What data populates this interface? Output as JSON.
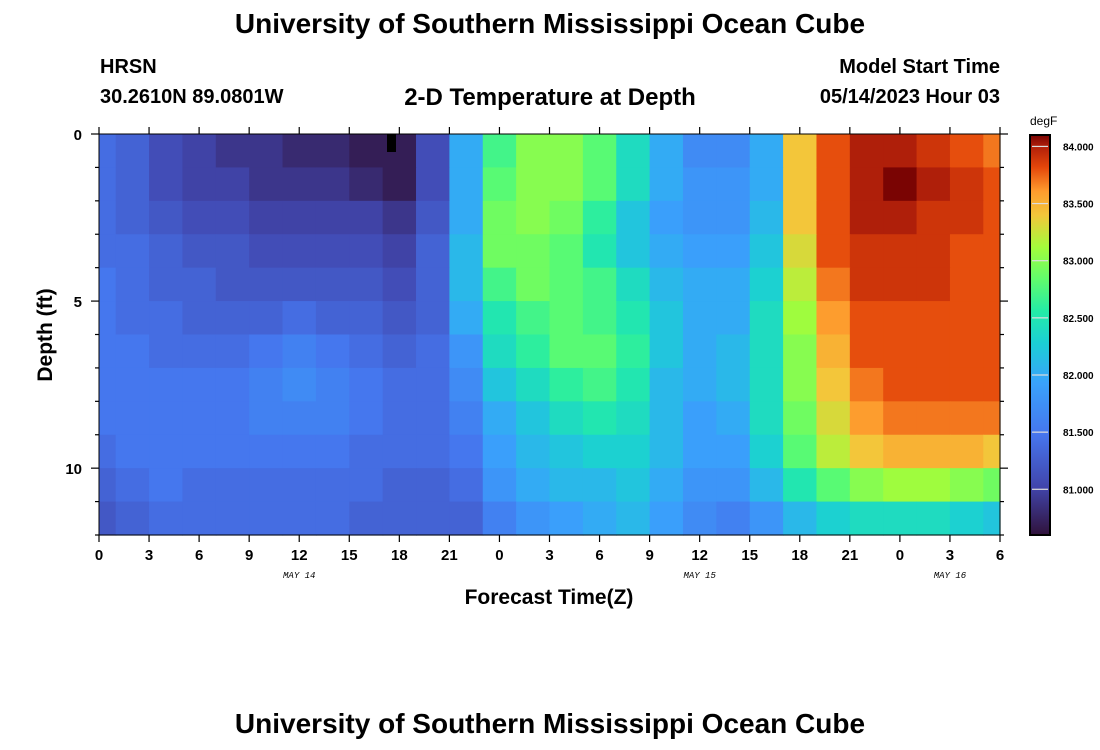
{
  "header": {
    "title": "University of Southern Mississippi Ocean Cube",
    "station": "HRSN",
    "coords": "30.2610N  89.0801W",
    "subtitle": "2-D Temperature at Depth",
    "model_start_label": "Model Start Time",
    "model_start_value": "05/14/2023 Hour 03"
  },
  "footer": {
    "title": "University of Southern Mississippi Ocean Cube"
  },
  "chart_data": {
    "type": "heatmap",
    "xlabel": "Forecast Time(Z)",
    "ylabel": "Depth (ft)",
    "x_start_hour": 0,
    "x_end_hour": 54,
    "x_ticks": [
      {
        "hour": 0,
        "label": "0"
      },
      {
        "hour": 3,
        "label": "3"
      },
      {
        "hour": 6,
        "label": "6"
      },
      {
        "hour": 9,
        "label": "9"
      },
      {
        "hour": 12,
        "label": "12"
      },
      {
        "hour": 15,
        "label": "15"
      },
      {
        "hour": 18,
        "label": "18"
      },
      {
        "hour": 21,
        "label": "21"
      },
      {
        "hour": 24,
        "label": "0"
      },
      {
        "hour": 27,
        "label": "3"
      },
      {
        "hour": 30,
        "label": "6"
      },
      {
        "hour": 33,
        "label": "9"
      },
      {
        "hour": 36,
        "label": "12"
      },
      {
        "hour": 39,
        "label": "15"
      },
      {
        "hour": 42,
        "label": "18"
      },
      {
        "hour": 45,
        "label": "21"
      },
      {
        "hour": 48,
        "label": "0"
      },
      {
        "hour": 51,
        "label": "3"
      },
      {
        "hour": 54,
        "label": "6"
      }
    ],
    "date_labels": [
      {
        "hour": 12,
        "label": "MAY 14"
      },
      {
        "hour": 36,
        "label": "MAY 15"
      },
      {
        "hour": 51,
        "label": "MAY 16"
      }
    ],
    "y_range": [
      0,
      12
    ],
    "y_ticks": [
      0,
      5,
      10
    ],
    "colorbar": {
      "unit": "degF",
      "range": [
        80.6,
        84.1
      ],
      "ticks": [
        "81.000",
        "81.500",
        "82.000",
        "82.500",
        "83.000",
        "83.500",
        "84.000"
      ],
      "tick_values": [
        81.0,
        81.5,
        82.0,
        82.5,
        83.0,
        83.5,
        84.0
      ]
    },
    "depth_levels_ft": [
      0.5,
      1.5,
      2.5,
      3.5,
      4.5,
      5.5,
      6.5,
      7.5,
      8.5,
      9.5,
      10.5,
      11.5
    ],
    "time_hours": [
      0,
      2,
      4,
      6,
      8,
      10,
      12,
      14,
      16,
      18,
      20,
      22,
      24,
      26,
      28,
      30,
      32,
      34,
      36,
      38,
      40,
      42,
      44,
      46,
      48,
      50,
      52,
      54
    ],
    "values_degF": [
      [
        81.4,
        81.3,
        81.1,
        81.0,
        80.9,
        80.9,
        80.8,
        80.8,
        80.7,
        80.7,
        81.1,
        82.0,
        82.7,
        83.0,
        83.0,
        82.8,
        82.4,
        82.0,
        81.7,
        81.7,
        82.0,
        83.4,
        83.8,
        84.0,
        84.0,
        83.9,
        83.8,
        83.7
      ],
      [
        81.4,
        81.3,
        81.1,
        81.0,
        81.0,
        80.9,
        80.9,
        80.9,
        80.8,
        80.7,
        81.1,
        82.0,
        82.8,
        83.0,
        83.0,
        82.8,
        82.4,
        82.0,
        81.8,
        81.8,
        82.0,
        83.4,
        83.8,
        84.0,
        84.1,
        84.0,
        83.9,
        83.8
      ],
      [
        81.4,
        81.3,
        81.2,
        81.1,
        81.1,
        81.0,
        81.0,
        81.0,
        81.0,
        80.9,
        81.2,
        82.0,
        82.9,
        83.0,
        82.9,
        82.6,
        82.2,
        81.9,
        81.8,
        81.8,
        82.1,
        83.4,
        83.8,
        84.0,
        84.0,
        83.9,
        83.9,
        83.8
      ],
      [
        81.4,
        81.4,
        81.3,
        81.2,
        81.2,
        81.1,
        81.1,
        81.1,
        81.1,
        81.0,
        81.3,
        82.1,
        82.9,
        82.9,
        82.8,
        82.5,
        82.2,
        82.0,
        81.9,
        81.9,
        82.2,
        83.3,
        83.8,
        83.9,
        83.9,
        83.9,
        83.8,
        83.8
      ],
      [
        81.5,
        81.4,
        81.3,
        81.3,
        81.2,
        81.2,
        81.2,
        81.2,
        81.2,
        81.1,
        81.3,
        82.1,
        82.7,
        82.9,
        82.8,
        82.7,
        82.4,
        82.1,
        82.0,
        82.0,
        82.3,
        83.2,
        83.7,
        83.9,
        83.9,
        83.9,
        83.8,
        83.8
      ],
      [
        81.5,
        81.4,
        81.4,
        81.3,
        81.3,
        81.3,
        81.4,
        81.3,
        81.3,
        81.2,
        81.3,
        82.0,
        82.5,
        82.7,
        82.8,
        82.7,
        82.5,
        82.2,
        82.0,
        82.0,
        82.4,
        83.1,
        83.6,
        83.8,
        83.8,
        83.8,
        83.8,
        83.8
      ],
      [
        81.5,
        81.5,
        81.4,
        81.4,
        81.4,
        81.5,
        81.6,
        81.5,
        81.4,
        81.3,
        81.4,
        81.8,
        82.4,
        82.6,
        82.8,
        82.8,
        82.6,
        82.2,
        82.0,
        82.1,
        82.4,
        83.0,
        83.5,
        83.8,
        83.8,
        83.8,
        83.8,
        83.8
      ],
      [
        81.5,
        81.5,
        81.5,
        81.5,
        81.5,
        81.6,
        81.7,
        81.6,
        81.5,
        81.4,
        81.4,
        81.7,
        82.2,
        82.4,
        82.6,
        82.7,
        82.5,
        82.1,
        82.0,
        82.1,
        82.4,
        83.0,
        83.4,
        83.7,
        83.8,
        83.8,
        83.8,
        83.8
      ],
      [
        81.5,
        81.5,
        81.5,
        81.5,
        81.5,
        81.6,
        81.6,
        81.6,
        81.5,
        81.4,
        81.4,
        81.6,
        82.0,
        82.2,
        82.4,
        82.5,
        82.4,
        82.1,
        81.9,
        82.0,
        82.4,
        82.9,
        83.3,
        83.6,
        83.7,
        83.7,
        83.7,
        83.7
      ],
      [
        81.4,
        81.5,
        81.5,
        81.5,
        81.5,
        81.5,
        81.5,
        81.5,
        81.4,
        81.4,
        81.4,
        81.5,
        81.9,
        82.1,
        82.2,
        82.3,
        82.3,
        82.1,
        81.9,
        81.9,
        82.3,
        82.8,
        83.2,
        83.4,
        83.5,
        83.5,
        83.5,
        83.4
      ],
      [
        81.3,
        81.4,
        81.5,
        81.4,
        81.4,
        81.4,
        81.4,
        81.4,
        81.4,
        81.3,
        81.3,
        81.4,
        81.8,
        82.0,
        82.1,
        82.1,
        82.2,
        82.0,
        81.8,
        81.8,
        82.1,
        82.5,
        82.8,
        83.0,
        83.1,
        83.1,
        83.0,
        82.9
      ],
      [
        81.2,
        81.3,
        81.4,
        81.4,
        81.4,
        81.4,
        81.4,
        81.4,
        81.3,
        81.3,
        81.3,
        81.3,
        81.6,
        81.8,
        81.9,
        82.0,
        82.1,
        81.9,
        81.7,
        81.6,
        81.8,
        82.1,
        82.3,
        82.4,
        82.4,
        82.4,
        82.3,
        82.2
      ]
    ]
  }
}
